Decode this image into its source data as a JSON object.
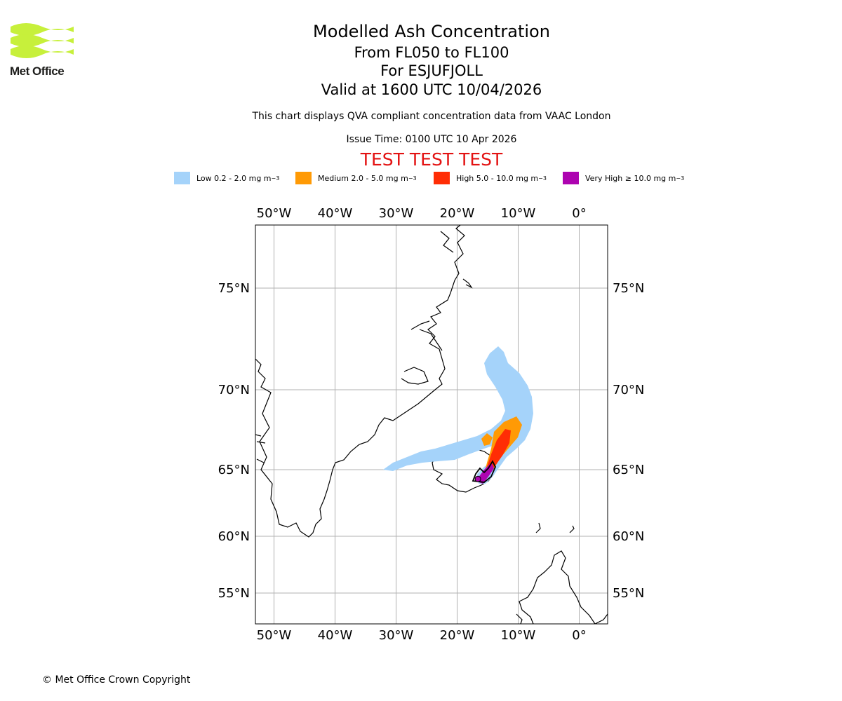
{
  "header": {
    "logo_text": "Met Office",
    "title": "Modelled Ash Concentration",
    "levels": "From FL050 to FL100",
    "volcano": "For ESJUFJOLL",
    "valid": "Valid at 1600 UTC 10/04/2026",
    "compliance": "This chart displays QVA compliant concentration data from VAAC London",
    "issue_time": "Issue Time: 0100 UTC 10 Apr 2026",
    "test_banner": "TEST TEST TEST"
  },
  "legend": [
    {
      "label": "Low 0.2 - 2.0 mg m",
      "exp": "−3",
      "color": "#a5d3fa"
    },
    {
      "label": "Medium 2.0 - 5.0 mg m",
      "exp": "−3",
      "color": "#ff9a05"
    },
    {
      "label": "High 5.0 - 10.0 mg m",
      "exp": "−3",
      "color": "#ff2d05"
    },
    {
      "label": "Very High  ≥  10.0 mg m",
      "exp": "−3",
      "color": "#ad03b0"
    }
  ],
  "map": {
    "lon_ticks": [
      {
        "lon": -50,
        "label": "50°W"
      },
      {
        "lon": -40,
        "label": "40°W"
      },
      {
        "lon": -30,
        "label": "30°W"
      },
      {
        "lon": -20,
        "label": "20°W"
      },
      {
        "lon": -10,
        "label": "10°W"
      },
      {
        "lon": 0,
        "label": "0°"
      }
    ],
    "lat_ticks": [
      {
        "lat": 75,
        "label": "75°N"
      },
      {
        "lat": 70,
        "label": "70°N"
      },
      {
        "lat": 65,
        "label": "65°N"
      },
      {
        "lat": 60,
        "label": "60°N"
      },
      {
        "lat": 55,
        "label": "55°N"
      }
    ],
    "lon_range": [
      -53,
      5
    ],
    "lat_range": [
      53,
      77
    ],
    "volcano_lon": -16.6,
    "volcano_lat": 64.3
  },
  "footer": {
    "copyright": "© Met Office Crown Copyright"
  }
}
